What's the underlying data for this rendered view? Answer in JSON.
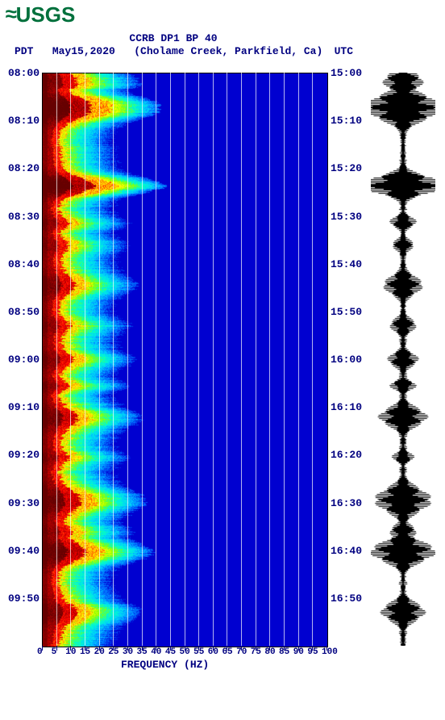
{
  "logo_text": "USGS",
  "title": "CCRB DP1 BP 40",
  "subtitle_left": "PDT",
  "subtitle_date": "May15,2020",
  "subtitle_loc": "(Cholame Creek, Parkfield, Ca)",
  "subtitle_right": "UTC",
  "xaxis_title": "FREQUENCY (HZ)",
  "left_ticks": [
    "08:00",
    "08:10",
    "08:20",
    "08:30",
    "08:40",
    "08:50",
    "09:00",
    "09:10",
    "09:20",
    "09:30",
    "09:40",
    "09:50"
  ],
  "right_ticks": [
    "15:00",
    "15:10",
    "15:20",
    "15:30",
    "15:40",
    "15:50",
    "16:00",
    "16:10",
    "16:20",
    "16:30",
    "16:40",
    "16:50"
  ],
  "x_ticks": [
    "0",
    "5",
    "10",
    "15",
    "20",
    "25",
    "30",
    "35",
    "40",
    "45",
    "50",
    "55",
    "60",
    "65",
    "70",
    "75",
    "80",
    "85",
    "90",
    "95",
    "100"
  ],
  "chart": {
    "type": "spectrogram",
    "xlim": [
      0,
      100
    ],
    "time_rows": 120,
    "background_color": "#0000d0",
    "colormap": [
      "#660000",
      "#aa0000",
      "#ff0000",
      "#ff6600",
      "#ffcc00",
      "#ffff00",
      "#88ff00",
      "#00ffcc",
      "#00ccff",
      "#0066ff",
      "#0000d0"
    ],
    "grid_color": "#ffffff",
    "font_color": "#000080",
    "font_family": "Courier New",
    "seismogram_color": "#000000",
    "seismogram_events": [
      {
        "t": 0.015,
        "amp": 0.45,
        "dur": 0.02
      },
      {
        "t": 0.06,
        "amp": 0.95,
        "dur": 0.025
      },
      {
        "t": 0.195,
        "amp": 1.0,
        "dur": 0.018
      },
      {
        "t": 0.26,
        "amp": 0.3,
        "dur": 0.012
      },
      {
        "t": 0.3,
        "amp": 0.25,
        "dur": 0.012
      },
      {
        "t": 0.37,
        "amp": 0.45,
        "dur": 0.02
      },
      {
        "t": 0.44,
        "amp": 0.3,
        "dur": 0.015
      },
      {
        "t": 0.5,
        "amp": 0.35,
        "dur": 0.015
      },
      {
        "t": 0.545,
        "amp": 0.3,
        "dur": 0.01
      },
      {
        "t": 0.6,
        "amp": 0.55,
        "dur": 0.02
      },
      {
        "t": 0.67,
        "amp": 0.25,
        "dur": 0.01
      },
      {
        "t": 0.745,
        "amp": 0.65,
        "dur": 0.025
      },
      {
        "t": 0.8,
        "amp": 0.3,
        "dur": 0.015
      },
      {
        "t": 0.835,
        "amp": 0.75,
        "dur": 0.022
      },
      {
        "t": 0.94,
        "amp": 0.5,
        "dur": 0.02
      }
    ],
    "dominant_energy_freq_max_per_row": "8-18Hz varying"
  }
}
